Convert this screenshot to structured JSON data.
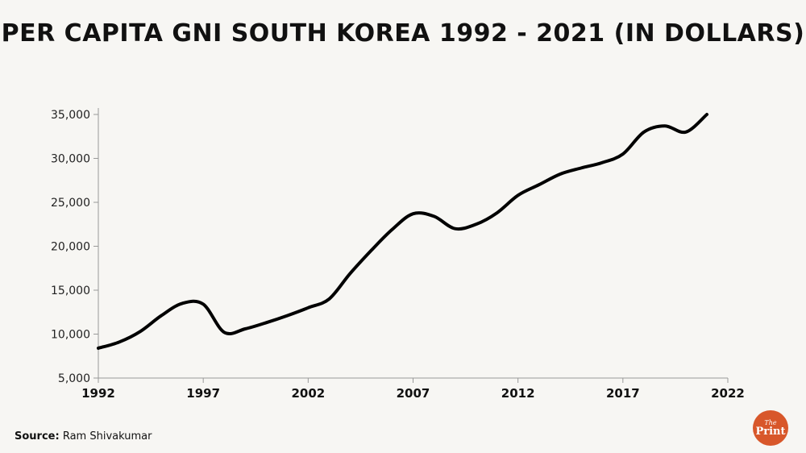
{
  "title": "PER CAPITA GNI SOUTH KOREA 1992 - 2021 (IN DOLLARS)",
  "source": {
    "label": "Source:",
    "value": "Ram Shivakumar"
  },
  "logo": {
    "the": "The",
    "print": "Print"
  },
  "colors": {
    "line": "#000000",
    "axis": "#999999",
    "logo": "#d8572a",
    "background": "#f7f6f3"
  },
  "chart_data": {
    "type": "line",
    "title": "PER CAPITA GNI SOUTH KOREA 1992 - 2021 (IN DOLLARS)",
    "xlabel": "",
    "ylabel": "",
    "xlim": [
      1992,
      2022
    ],
    "ylim": [
      5000,
      35000
    ],
    "x_ticks": [
      1992,
      1997,
      2002,
      2007,
      2012,
      2017,
      2022
    ],
    "x_tick_labels": [
      "1992",
      "1997",
      "2002",
      "2007",
      "2012",
      "2017",
      "2022"
    ],
    "y_ticks": [
      5000,
      10000,
      15000,
      20000,
      25000,
      30000,
      35000
    ],
    "y_tick_labels": [
      "5,000",
      "10,000",
      "15,000",
      "20,000",
      "25,000",
      "30,000",
      "35,000"
    ],
    "grid": false,
    "series": [
      {
        "x": [
          1992,
          1993,
          1994,
          1995,
          1996,
          1997,
          1998,
          1999,
          2000,
          2001,
          2002,
          2003,
          2004,
          2005,
          2006,
          2007,
          2008,
          2009,
          2010,
          2011,
          2012,
          2013,
          2014,
          2015,
          2016,
          2017,
          2018,
          2019,
          2020,
          2021
        ],
        "values": [
          8400,
          9100,
          10300,
          12100,
          13500,
          13400,
          10200,
          10600,
          11300,
          12100,
          13000,
          14000,
          16900,
          19500,
          21900,
          23700,
          23400,
          22000,
          22500,
          23800,
          25800,
          27000,
          28200,
          28900,
          29500,
          30500,
          33000,
          33700,
          33000,
          35000
        ]
      }
    ]
  }
}
